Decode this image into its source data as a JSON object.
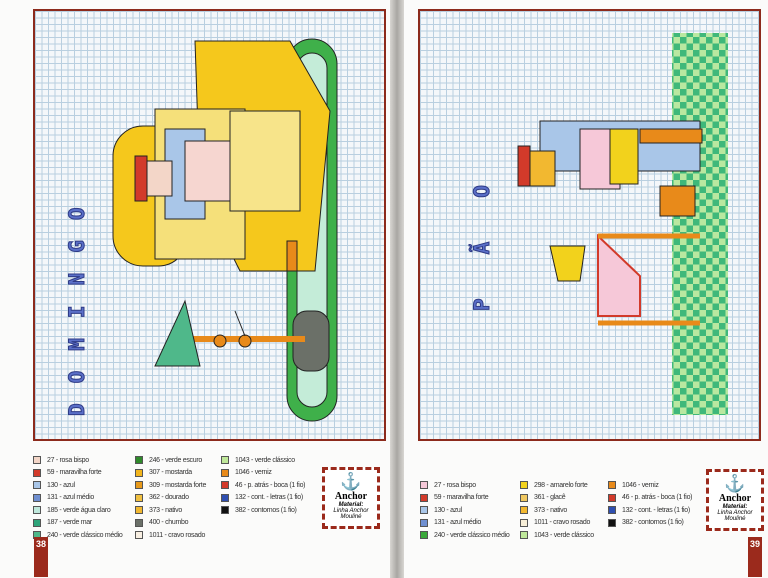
{
  "left_page": {
    "page_number": "38",
    "word": "DOMINGO",
    "legend": [
      [
        {
          "label": "27 - rosa bispo",
          "color": "#f3d6c8"
        },
        {
          "label": "59 - maravilha forte",
          "color": "#d23a2a"
        },
        {
          "label": "130 - azul",
          "color": "#a9c6e8"
        },
        {
          "label": "131 - azul médio",
          "color": "#6f8fd0"
        },
        {
          "label": "185 - verde água claro",
          "color": "#bfe8dc"
        },
        {
          "label": "187 - verde mar",
          "color": "#2fa57a"
        },
        {
          "label": "240 - verde clássico médio",
          "color": "#4fb88a"
        }
      ],
      [
        {
          "label": "246 - verde escuro",
          "color": "#2f8a2a"
        },
        {
          "label": "307 - mostarda",
          "color": "#f2b51c"
        },
        {
          "label": "309 - mostarda forte",
          "color": "#e89a1a"
        },
        {
          "label": "362 - dourado",
          "color": "#f0c040"
        },
        {
          "label": "373 - nativo",
          "color": "#f2b830"
        },
        {
          "label": "400 - chumbo",
          "color": "#6b7068"
        },
        {
          "label": "1011 - cravo rosado",
          "color": "#f8efe2"
        }
      ],
      [
        {
          "label": "1043 - verde clássico",
          "color": "#bfe89a"
        },
        {
          "label": "1046 - verniz",
          "color": "#e88a1a"
        },
        {
          "label": "46 - p. atrás - boca (1 fio)",
          "color": "#d23a2a"
        },
        {
          "label": "132 - cont. - letras (1 fio)",
          "color": "#2f4fb0"
        },
        {
          "label": "382 - contornos (1 fio)",
          "color": "#111111"
        }
      ]
    ],
    "brand": {
      "name": "Anchor",
      "material": "Material:",
      "line": "Linha Anchor Mouliné"
    }
  },
  "right_page": {
    "page_number": "39",
    "word": "PÃO",
    "legend": [
      [
        {
          "label": "27 - rosa bispo",
          "color": "#f6c8d8"
        },
        {
          "label": "59 - maravilha forte",
          "color": "#d23a2a"
        },
        {
          "label": "130 - azul",
          "color": "#a9c6e8"
        },
        {
          "label": "131 - azul médio",
          "color": "#6f8fd0"
        },
        {
          "label": "240 - verde clássico médio",
          "color": "#3aa83a"
        }
      ],
      [
        {
          "label": "298 - amarelo forte",
          "color": "#f2d21c"
        },
        {
          "label": "361 - glacê",
          "color": "#f0c860"
        },
        {
          "label": "373 - nativo",
          "color": "#f2b830"
        },
        {
          "label": "1011 - cravo rosado",
          "color": "#f8efd8"
        },
        {
          "label": "1043 - verde clássico",
          "color": "#bfe89a"
        }
      ],
      [
        {
          "label": "1046 - verniz",
          "color": "#e88a1a"
        },
        {
          "label": "46 - p. atrás - boca (1 fio)",
          "color": "#d23a2a"
        },
        {
          "label": "132 - cont. - letras (1 fio)",
          "color": "#2f4fb0"
        },
        {
          "label": "382 - contornos (1 fio)",
          "color": "#111111"
        }
      ]
    ],
    "brand": {
      "name": "Anchor",
      "material": "Material:",
      "line": "Linha Anchor Mouliné"
    }
  }
}
